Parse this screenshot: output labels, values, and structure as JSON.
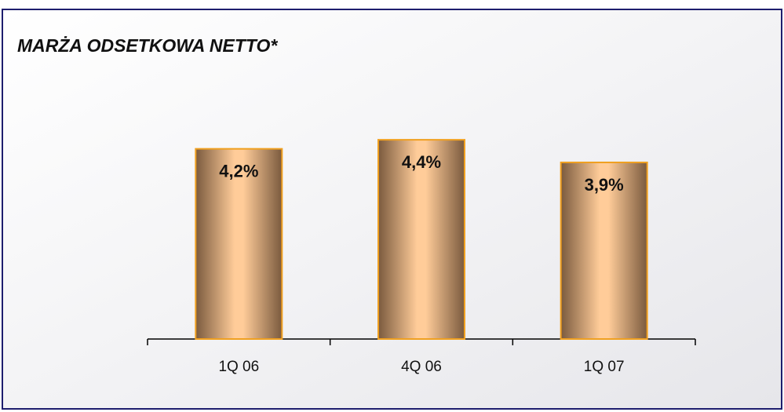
{
  "chart_data": {
    "type": "bar",
    "title": "MARŻA ODSETKOWA NETTO*",
    "categories": [
      "1Q 06",
      "4Q 06",
      "1Q 07"
    ],
    "values": [
      4.2,
      4.4,
      3.9
    ],
    "value_labels": [
      "4,2%",
      "4,4%",
      "3,9%"
    ]
  }
}
